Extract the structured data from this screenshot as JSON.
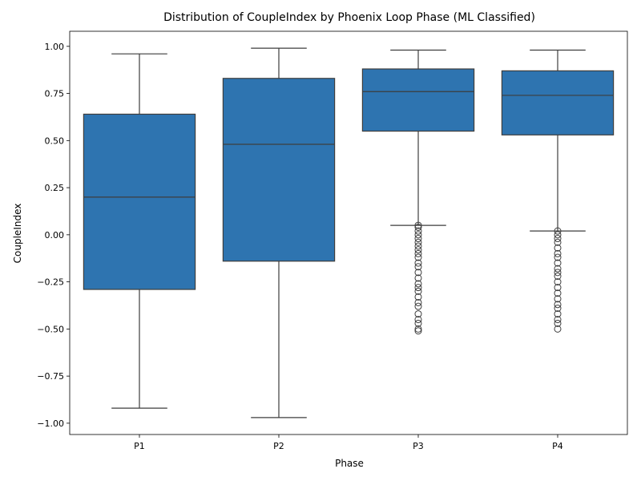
{
  "chart_data": {
    "type": "box",
    "title": "Distribution of CoupleIndex by Phoenix Loop Phase (ML Classified)",
    "xlabel": "Phase",
    "ylabel": "CoupleIndex",
    "ylim": [
      -1.06,
      1.08
    ],
    "yticks": [
      -1.0,
      -0.75,
      -0.5,
      -0.25,
      0.0,
      0.25,
      0.5,
      0.75,
      1.0
    ],
    "ytick_labels": [
      "−1.00",
      "−0.75",
      "−0.50",
      "−0.25",
      "0.00",
      "0.25",
      "0.50",
      "0.75",
      "1.00"
    ],
    "categories": [
      "P1",
      "P2",
      "P3",
      "P4"
    ],
    "box_color": "#2e74b0",
    "line_color": "#3d3d3d",
    "grid": false,
    "legend": "none",
    "boxes": [
      {
        "category": "P1",
        "whisker_low": -0.92,
        "q1": -0.29,
        "median": 0.2,
        "q3": 0.64,
        "whisker_high": 0.96,
        "outliers": []
      },
      {
        "category": "P2",
        "whisker_low": -0.97,
        "q1": -0.14,
        "median": 0.48,
        "q3": 0.83,
        "whisker_high": 0.99,
        "outliers": []
      },
      {
        "category": "P3",
        "whisker_low": 0.05,
        "q1": 0.55,
        "median": 0.76,
        "q3": 0.88,
        "whisker_high": 0.98,
        "outliers": [
          0.05,
          0.04,
          0.02,
          0.0,
          -0.02,
          -0.04,
          -0.06,
          -0.08,
          -0.1,
          -0.12,
          -0.15,
          -0.17,
          -0.2,
          -0.23,
          -0.26,
          -0.28,
          -0.3,
          -0.33,
          -0.36,
          -0.38,
          -0.42,
          -0.45,
          -0.47,
          -0.5,
          -0.51
        ]
      },
      {
        "category": "P4",
        "whisker_low": 0.02,
        "q1": 0.53,
        "median": 0.74,
        "q3": 0.87,
        "whisker_high": 0.98,
        "outliers": [
          0.02,
          0.0,
          -0.02,
          -0.04,
          -0.07,
          -0.1,
          -0.12,
          -0.15,
          -0.18,
          -0.2,
          -0.22,
          -0.25,
          -0.28,
          -0.31,
          -0.34,
          -0.37,
          -0.39,
          -0.42,
          -0.45,
          -0.47,
          -0.5
        ]
      }
    ]
  }
}
